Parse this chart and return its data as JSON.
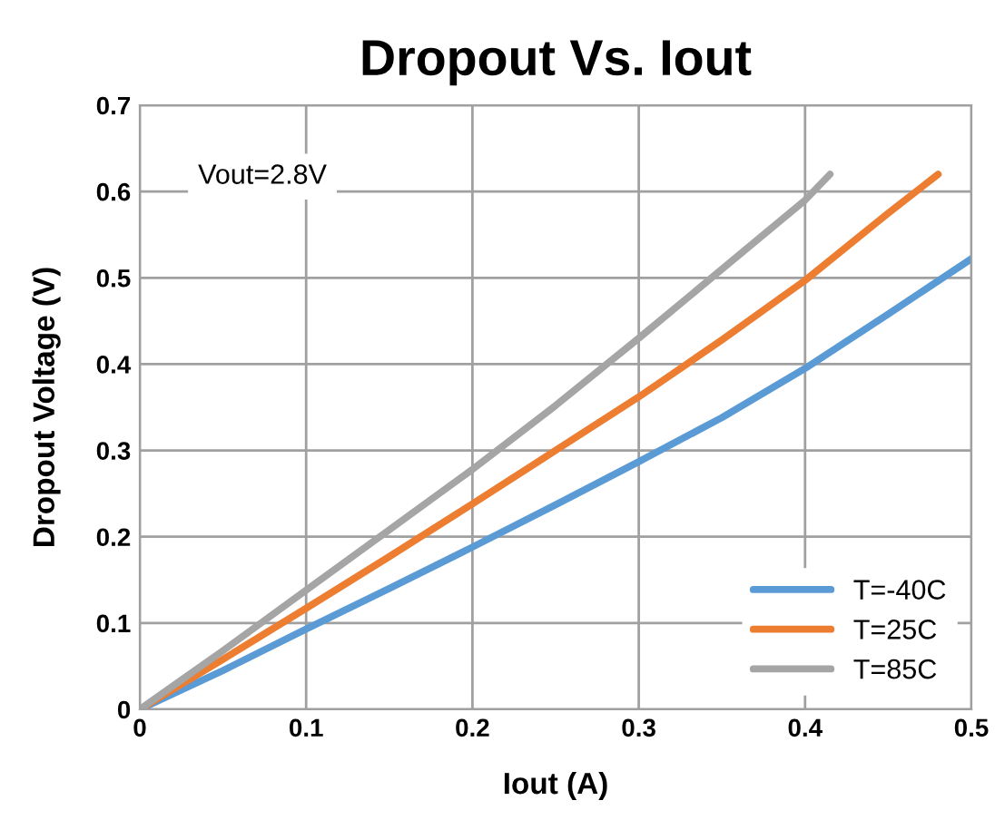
{
  "chart_data": {
    "type": "line",
    "title": "Dropout Vs. Iout",
    "xlabel": "Iout (A)",
    "ylabel": "Dropout Voltage (V)",
    "xlim": [
      0,
      0.5
    ],
    "xticks": [
      {
        "value": 0,
        "label": "0"
      },
      0.1,
      0.2,
      0.3,
      0.4,
      0.5
    ],
    "ylim": [
      0,
      0.7
    ],
    "yticks": [
      {
        "value": 0,
        "label": "0"
      },
      0.1,
      0.2,
      0.3,
      0.4,
      0.5,
      0.6,
      0.7
    ],
    "grid": true,
    "legend": "bottom right",
    "marker": "none",
    "line_style": "solid",
    "annotations": [
      {
        "text": "Vout=2.8V"
      }
    ],
    "series": [
      {
        "name": "T=-40C",
        "color": "#5b9bd5",
        "x": [
          0,
          0.05,
          0.1,
          0.15,
          0.2,
          0.25,
          0.3,
          0.35,
          0.4,
          0.45,
          0.5
        ],
        "values": [
          0,
          0.045,
          0.093,
          0.14,
          0.188,
          0.237,
          0.287,
          0.338,
          0.395,
          0.458,
          0.522
        ]
      },
      {
        "name": "T=25C",
        "color": "#ed7d31",
        "x": [
          0,
          0.05,
          0.1,
          0.15,
          0.2,
          0.25,
          0.3,
          0.35,
          0.4,
          0.45,
          0.48
        ],
        "values": [
          0,
          0.058,
          0.117,
          0.177,
          0.238,
          0.3,
          0.362,
          0.428,
          0.497,
          0.575,
          0.62
        ]
      },
      {
        "name": "T=85C",
        "color": "#a5a5a5",
        "x": [
          0,
          0.05,
          0.1,
          0.15,
          0.2,
          0.25,
          0.3,
          0.35,
          0.4,
          0.415
        ],
        "values": [
          0,
          0.068,
          0.138,
          0.208,
          0.278,
          0.352,
          0.43,
          0.51,
          0.59,
          0.62
        ]
      }
    ]
  }
}
